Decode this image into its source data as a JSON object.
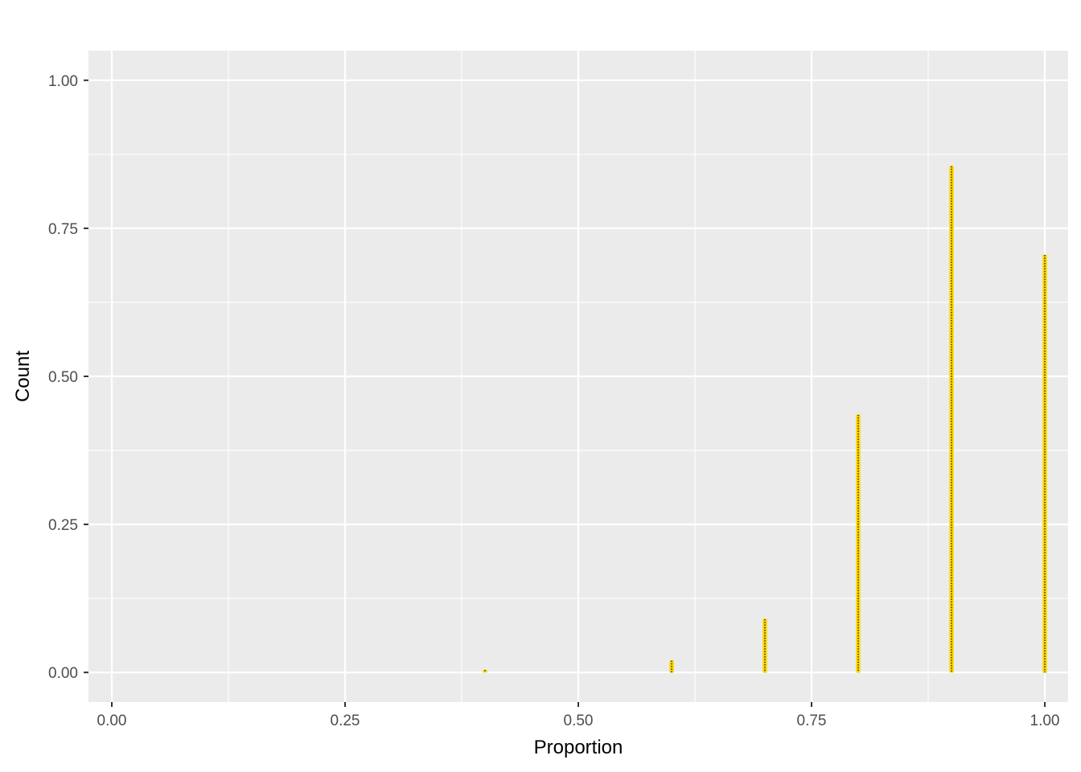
{
  "chart_data": {
    "type": "dotplot",
    "title": "",
    "xlabel": "Proportion",
    "ylabel": "Count",
    "xlim": [
      -0.025,
      1.025
    ],
    "ylim": [
      -0.05,
      1.05
    ],
    "x_ticks": [
      0,
      0.25,
      0.5,
      0.75,
      1
    ],
    "x_tick_labels": [
      "0.00",
      "0.25",
      "0.50",
      "0.75",
      "1.00"
    ],
    "y_ticks": [
      0,
      0.25,
      0.5,
      0.75,
      1
    ],
    "y_tick_labels": [
      "0.00",
      "0.25",
      "0.50",
      "0.75",
      "1.00"
    ],
    "grid": true,
    "series": [
      {
        "x": [
          0.4,
          0.6,
          0.7,
          0.8,
          0.9,
          1.0
        ],
        "y": [
          0.003,
          0.02,
          0.09,
          0.435,
          0.855,
          0.705
        ]
      }
    ],
    "colors": {
      "fill": "#FFD700",
      "stroke": "#000000",
      "panel": "#EBEBEB",
      "grid": "#FFFFFF"
    }
  }
}
